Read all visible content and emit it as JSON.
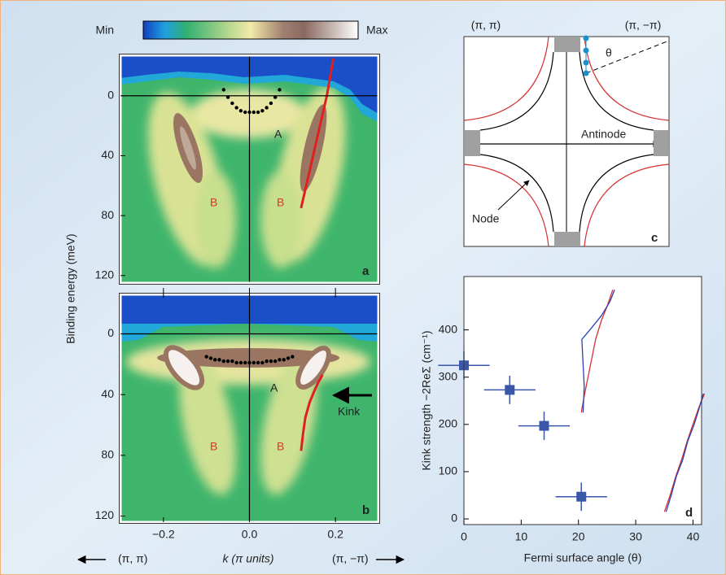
{
  "colorbar": {
    "min_label": "Min",
    "max_label": "Max"
  },
  "k_axis": {
    "left_label": "(π, π)",
    "right_label": "(π, −π)"
  },
  "diagram": {
    "corner_labels": [
      "(π, π)",
      "(π, −π)"
    ],
    "angle_label": "θ",
    "antinode_label": "Antinode",
    "node_label": "Node",
    "panel_label": "c"
  },
  "chart_data": [
    {
      "type": "image",
      "panel_label": "a",
      "ylabel": "Binding energy (meV)",
      "xlim": [
        -0.3,
        0.3
      ],
      "ylim": [
        125,
        -27
      ],
      "yticks": [
        0,
        40,
        80,
        120
      ],
      "annotations": [
        "A",
        "B",
        "B"
      ],
      "series": [
        {
          "color": "#000000",
          "marker": "dot",
          "x": [
            -0.06,
            -0.05,
            -0.04,
            -0.03,
            -0.02,
            -0.01,
            0,
            0.01,
            0.02,
            0.03,
            0.04,
            0.05,
            0.06,
            0.07
          ],
          "values": [
            -4,
            1,
            5,
            8,
            10,
            11,
            11,
            11,
            11,
            10,
            8,
            5,
            1,
            -4
          ]
        },
        {
          "color": "#e02020",
          "marker": "line",
          "x": [
            0.12,
            0.14,
            0.16,
            0.18,
            0.195
          ],
          "values": [
            75,
            50,
            25,
            0,
            -25
          ]
        }
      ]
    },
    {
      "type": "image",
      "panel_label": "b",
      "xlabel": "k (π units)",
      "xlim": [
        -0.3,
        0.3
      ],
      "ylim": [
        124,
        -26
      ],
      "yticks": [
        0,
        40,
        80,
        120
      ],
      "xticks": [
        {
          "value": -0.2,
          "label": "−0.2"
        },
        {
          "value": 0,
          "label": "0.0"
        },
        0.2
      ],
      "annotations": [
        "A",
        "B",
        "B",
        "Kink"
      ],
      "series": [
        {
          "color": "#000000",
          "marker": "dot",
          "x": [
            -0.1,
            -0.09,
            -0.08,
            -0.07,
            -0.06,
            -0.05,
            -0.04,
            -0.03,
            -0.02,
            -0.01,
            0,
            0.01,
            0.02,
            0.03,
            0.04,
            0.05,
            0.06,
            0.07,
            0.08,
            0.09,
            0.1
          ],
          "values": [
            15,
            16,
            17,
            17,
            18,
            18,
            18,
            19,
            19,
            19,
            19,
            19,
            19,
            19,
            18,
            18,
            18,
            17,
            17,
            16,
            15
          ]
        },
        {
          "color": "#e02020",
          "marker": "line",
          "x": [
            0.12,
            0.125,
            0.13,
            0.14,
            0.15,
            0.16,
            0.17
          ],
          "values": [
            77,
            65,
            55,
            45,
            38,
            32,
            27
          ]
        }
      ]
    },
    {
      "type": "scatter",
      "panel_label": "d",
      "xlabel": "Fermi surface angle (θ)",
      "ylabel": "Kink strength −2ReΣ (cm⁻¹)",
      "xlim": [
        0,
        41.5
      ],
      "ylim": [
        -12,
        513
      ],
      "xticks": [
        0,
        10,
        20,
        30,
        40
      ],
      "yticks": [
        0,
        100,
        200,
        300,
        400
      ],
      "series": [
        {
          "color": "#3a56a8",
          "marker": "square",
          "x": [
            0,
            8,
            14,
            20.5
          ],
          "values": [
            325,
            273,
            197,
            47
          ],
          "xerr": [
            4.5,
            4.5,
            4.5,
            4.5
          ],
          "yerr": [
            30,
            30,
            30,
            30
          ]
        },
        {
          "color": "#d83030",
          "marker": "line",
          "x": [
            20.5,
            21,
            22,
            23,
            24,
            25,
            26
          ],
          "values": [
            225,
            260,
            320,
            380,
            420,
            450,
            485
          ]
        },
        {
          "color": "#2a3fb8",
          "marker": "line",
          "x": [
            20.8,
            21,
            20.6,
            22,
            24,
            25.5,
            26.3
          ],
          "values": [
            225,
            280,
            380,
            400,
            430,
            460,
            485
          ]
        },
        {
          "color": "#d83030",
          "marker": "line",
          "x": [
            35,
            36,
            37,
            38,
            39,
            40,
            41,
            42
          ],
          "values": [
            15,
            50,
            90,
            125,
            165,
            200,
            235,
            265
          ]
        },
        {
          "color": "#2a3fb8",
          "marker": "line",
          "x": [
            35.3,
            36.2,
            37.1,
            38.2,
            39.1,
            40.2,
            41.1,
            41.8
          ],
          "values": [
            15,
            50,
            90,
            125,
            165,
            200,
            235,
            265
          ]
        }
      ]
    }
  ]
}
